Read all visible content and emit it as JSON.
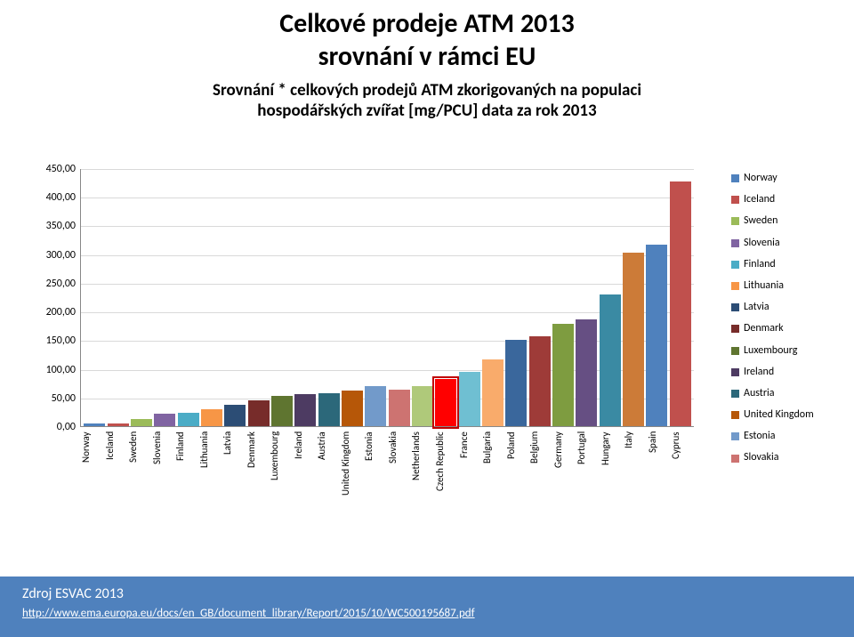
{
  "title": {
    "line1": "Celkové prodeje ATM 2013",
    "line2": "srovnání v rámci EU",
    "fontsize": 30,
    "fontweight": "bold",
    "color": "#000000"
  },
  "subtitle": {
    "line1": "Srovnání * celkových prodejů ATM zkorigovaných na populaci",
    "line2": "hospodářských zvířat [mg/PCU] data za rok 2013",
    "fontsize": 19,
    "fontweight": "bold",
    "color": "#000000"
  },
  "chart": {
    "type": "bar",
    "ylim": [
      0,
      450
    ],
    "ytick_step": 50,
    "yticks": [
      "0,00",
      "50,00",
      "100,00",
      "150,00",
      "200,00",
      "250,00",
      "300,00",
      "350,00",
      "400,00",
      "450,00"
    ],
    "grid_color": "#d9d9d9",
    "axis_color": "#888888",
    "background_color": "#ffffff",
    "label_fontsize": 12,
    "xlabel_fontsize": 11,
    "bars": [
      {
        "label": "Norway",
        "value": 4,
        "color": "#4f81bd"
      },
      {
        "label": "Iceland",
        "value": 5,
        "color": "#c0504d"
      },
      {
        "label": "Sweden",
        "value": 13,
        "color": "#9bbb59"
      },
      {
        "label": "Slovenia",
        "value": 22,
        "color": "#8064a2"
      },
      {
        "label": "Finland",
        "value": 24,
        "color": "#4bacc6"
      },
      {
        "label": "Lithuania",
        "value": 29,
        "color": "#f79646"
      },
      {
        "label": "Latvia",
        "value": 37,
        "color": "#2c4d75"
      },
      {
        "label": "Denmark",
        "value": 45,
        "color": "#772c2a"
      },
      {
        "label": "Luxembourg",
        "value": 53,
        "color": "#5f7530"
      },
      {
        "label": "Ireland",
        "value": 56,
        "color": "#4d3b62"
      },
      {
        "label": "Austria",
        "value": 57,
        "color": "#2c687a"
      },
      {
        "label": "United Kingdom",
        "value": 62,
        "color": "#b65708"
      },
      {
        "label": "Estonia",
        "value": 70,
        "color": "#729aca"
      },
      {
        "label": "Slovakia",
        "value": 63,
        "color": "#cd7371"
      },
      {
        "label": "Netherlands",
        "value": 70,
        "color": "#afc97a"
      },
      {
        "label": "Czech Republic",
        "value": 82,
        "color": "#ff0000",
        "highlight": true
      },
      {
        "label": "France",
        "value": 95,
        "color": "#6fbfd2"
      },
      {
        "label": "Bulgaria",
        "value": 116,
        "color": "#f9ab6b"
      },
      {
        "label": "Poland",
        "value": 151,
        "color": "#3a679c"
      },
      {
        "label": "Belgium",
        "value": 157,
        "color": "#9e3b38"
      },
      {
        "label": "Germany",
        "value": 179,
        "color": "#7e9c40"
      },
      {
        "label": "Portugal",
        "value": 187,
        "color": "#664f83"
      },
      {
        "label": "Hungary",
        "value": 230,
        "color": "#3a8aa3"
      },
      {
        "label": "Italy",
        "value": 302,
        "color": "#cc7b38"
      },
      {
        "label": "Spain",
        "value": 317,
        "color": "#4f81bd"
      },
      {
        "label": "Cyprus",
        "value": 426,
        "color": "#c0504d"
      }
    ]
  },
  "legend": {
    "fontsize": 12,
    "items": [
      {
        "label": "Norway",
        "color": "#4f81bd"
      },
      {
        "label": "Iceland",
        "color": "#c0504d"
      },
      {
        "label": "Sweden",
        "color": "#9bbb59"
      },
      {
        "label": "Slovenia",
        "color": "#8064a2"
      },
      {
        "label": "Finland",
        "color": "#4bacc6"
      },
      {
        "label": "Lithuania",
        "color": "#f79646"
      },
      {
        "label": "Latvia",
        "color": "#2c4d75"
      },
      {
        "label": "Denmark",
        "color": "#772c2a"
      },
      {
        "label": "Luxembourg",
        "color": "#5f7530"
      },
      {
        "label": "Ireland",
        "color": "#4d3b62"
      },
      {
        "label": "Austria",
        "color": "#2c687a"
      },
      {
        "label": "United Kingdom",
        "color": "#b65708"
      },
      {
        "label": "Estonia",
        "color": "#729aca"
      },
      {
        "label": "Slovakia",
        "color": "#cd7371"
      }
    ]
  },
  "footer": {
    "source": "Zdroj ESVAC 2013",
    "link": "http://www.ema.europa.eu/docs/en_GB/document_library/Report/2015/10/WC500195687.pdf",
    "bg_color": "#4f81bd",
    "text_color": "#ffffff"
  }
}
